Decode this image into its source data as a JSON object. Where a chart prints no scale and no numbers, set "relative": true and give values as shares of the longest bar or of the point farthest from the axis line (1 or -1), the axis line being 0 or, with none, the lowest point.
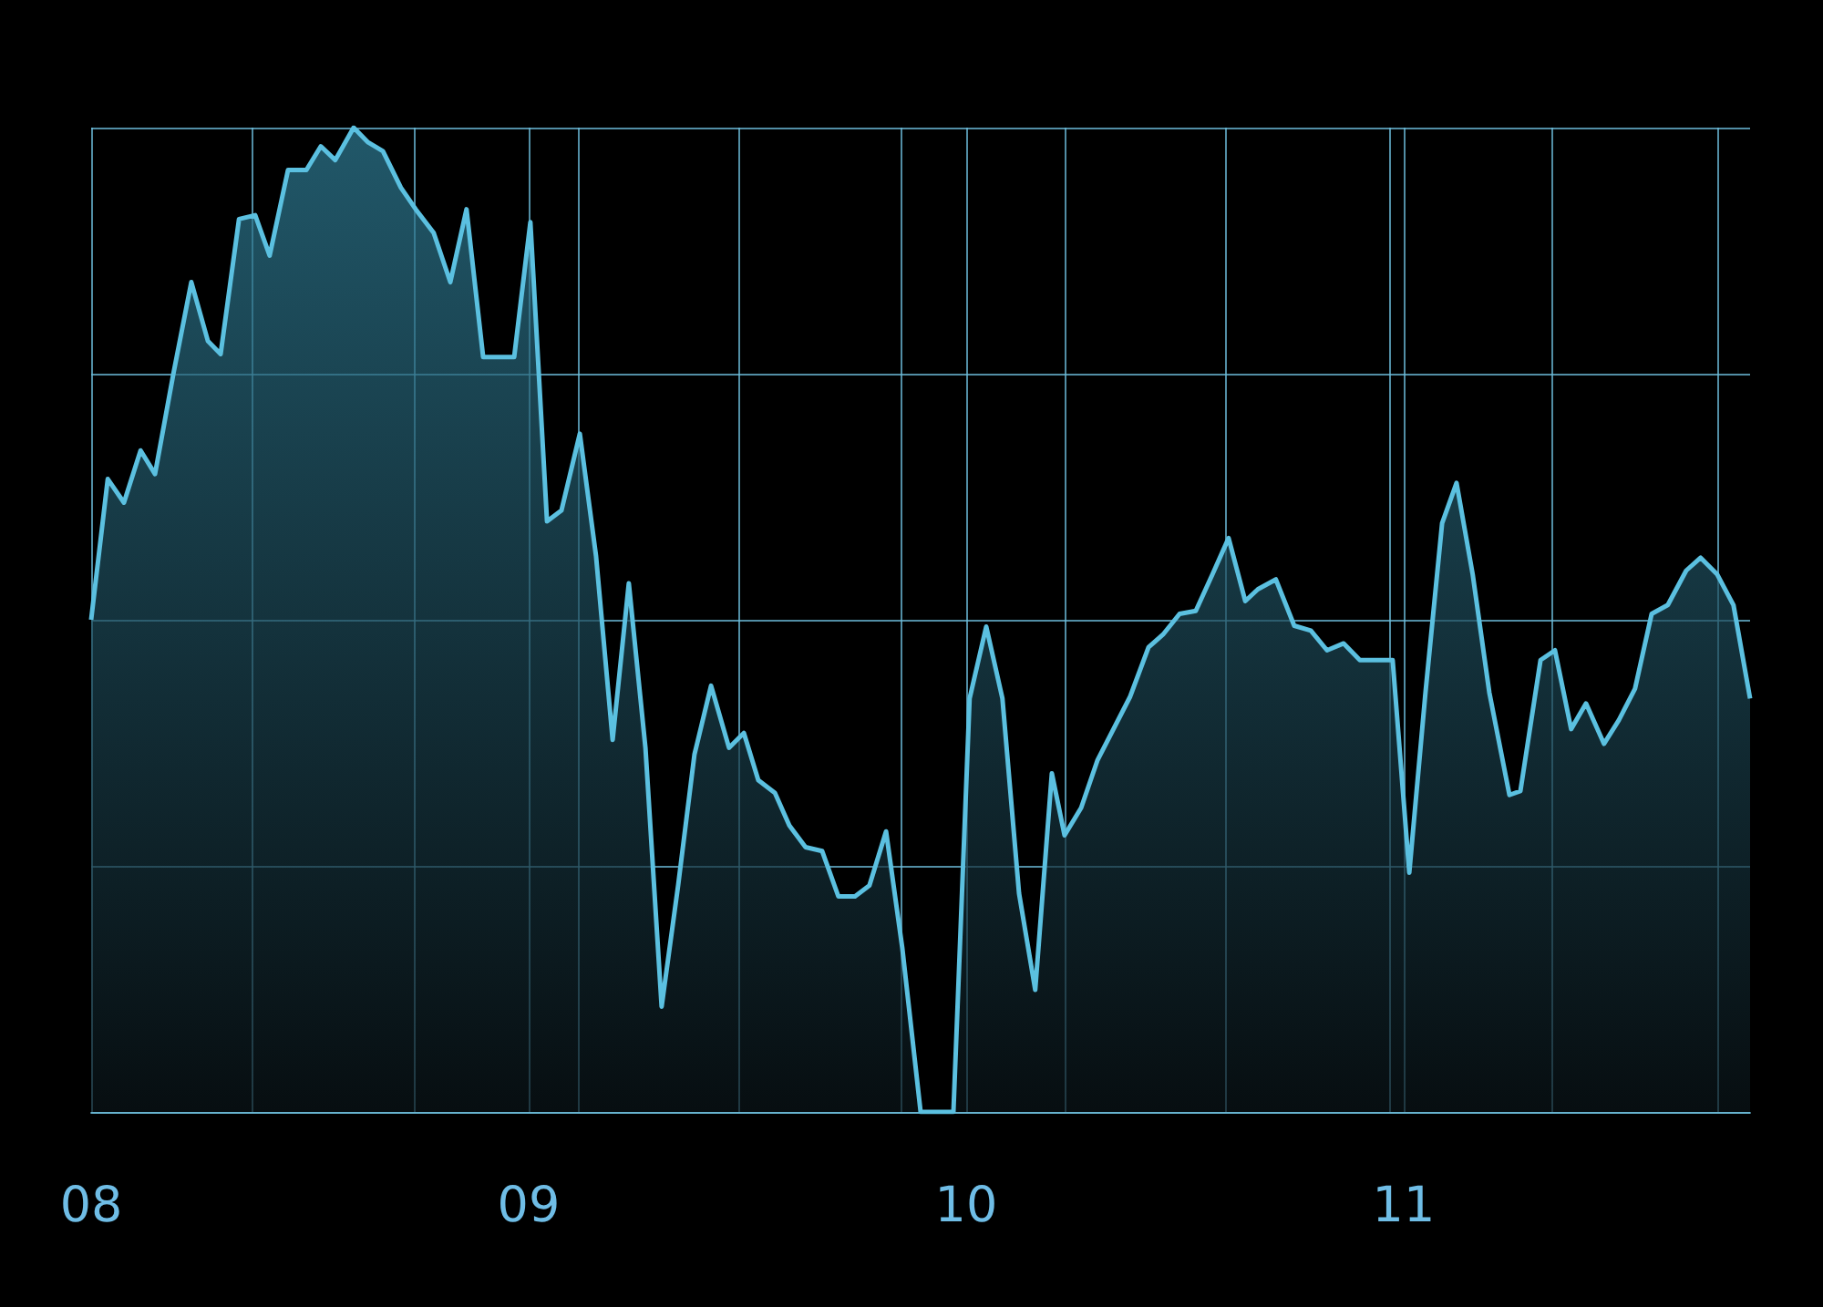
{
  "chart_data": {
    "type": "area",
    "relative": true,
    "grid": true,
    "color": "#5bc0e0",
    "xlim": [
      8,
      11.792
    ],
    "xticks": [
      {
        "value": 8,
        "label": "08"
      },
      {
        "value": 8.367,
        "label": null
      },
      {
        "value": 8.738,
        "label": null
      },
      {
        "value": 9,
        "label": "09"
      },
      {
        "value": 9.113,
        "label": null
      },
      {
        "value": 9.479,
        "label": null
      },
      {
        "value": 9.85,
        "label": null
      },
      {
        "value": 10,
        "label": "10"
      },
      {
        "value": 10.225,
        "label": null
      },
      {
        "value": 10.592,
        "label": null
      },
      {
        "value": 10.967,
        "label": null
      },
      {
        "value": 11,
        "label": "11"
      },
      {
        "value": 11.338,
        "label": null
      },
      {
        "value": 11.717,
        "label": null
      }
    ],
    "x": [
      8.0,
      8.038,
      8.075,
      8.113,
      8.146,
      8.188,
      8.229,
      8.267,
      8.296,
      8.338,
      8.375,
      8.408,
      8.45,
      8.492,
      8.525,
      8.558,
      8.6,
      8.633,
      8.667,
      8.708,
      8.742,
      8.783,
      8.821,
      8.858,
      8.896,
      8.967,
      9.004,
      9.042,
      9.075,
      9.117,
      9.154,
      9.192,
      9.229,
      9.267,
      9.304,
      9.342,
      9.379,
      9.417,
      9.458,
      9.492,
      9.525,
      9.563,
      9.596,
      9.633,
      9.671,
      9.708,
      9.746,
      9.779,
      9.817,
      9.854,
      9.896,
      9.971,
      10.008,
      10.046,
      10.083,
      10.121,
      10.158,
      10.196,
      10.225,
      10.263,
      10.3,
      10.375,
      10.417,
      10.45,
      10.488,
      10.525,
      10.563,
      10.6,
      10.638,
      10.667,
      10.708,
      10.75,
      10.788,
      10.825,
      10.863,
      10.9,
      10.975,
      11.013,
      11.05,
      11.088,
      11.121,
      11.158,
      11.196,
      11.242,
      11.267,
      11.313,
      11.346,
      11.383,
      11.417,
      11.458,
      11.492,
      11.529,
      11.567,
      11.604,
      11.646,
      11.679,
      11.717,
      11.754,
      11.792
    ],
    "values": [
      0.5,
      0.643,
      0.619,
      0.672,
      0.648,
      0.75,
      0.843,
      0.783,
      0.77,
      0.907,
      0.911,
      0.87,
      0.957,
      0.957,
      0.981,
      0.967,
      1.0,
      0.985,
      0.976,
      0.939,
      0.917,
      0.893,
      0.843,
      0.917,
      0.767,
      0.767,
      0.904,
      0.6,
      0.611,
      0.689,
      0.565,
      0.378,
      0.537,
      0.37,
      0.107,
      0.231,
      0.363,
      0.433,
      0.37,
      0.385,
      0.337,
      0.324,
      0.291,
      0.269,
      0.265,
      0.219,
      0.219,
      0.23,
      0.285,
      0.167,
      0,
      0,
      0.42,
      0.493,
      0.42,
      0.222,
      0.124,
      0.344,
      0.281,
      0.309,
      0.357,
      0.422,
      0.472,
      0.485,
      0.506,
      0.509,
      0.546,
      0.583,
      0.519,
      0.531,
      0.541,
      0.494,
      0.489,
      0.469,
      0.476,
      0.459,
      0.459,
      0.243,
      0.426,
      0.598,
      0.639,
      0.546,
      0.426,
      0.322,
      0.326,
      0.459,
      0.469,
      0.389,
      0.415,
      0.374,
      0.398,
      0.43,
      0.506,
      0.515,
      0.55,
      0.563,
      0.546,
      0.515,
      0.42
    ]
  }
}
